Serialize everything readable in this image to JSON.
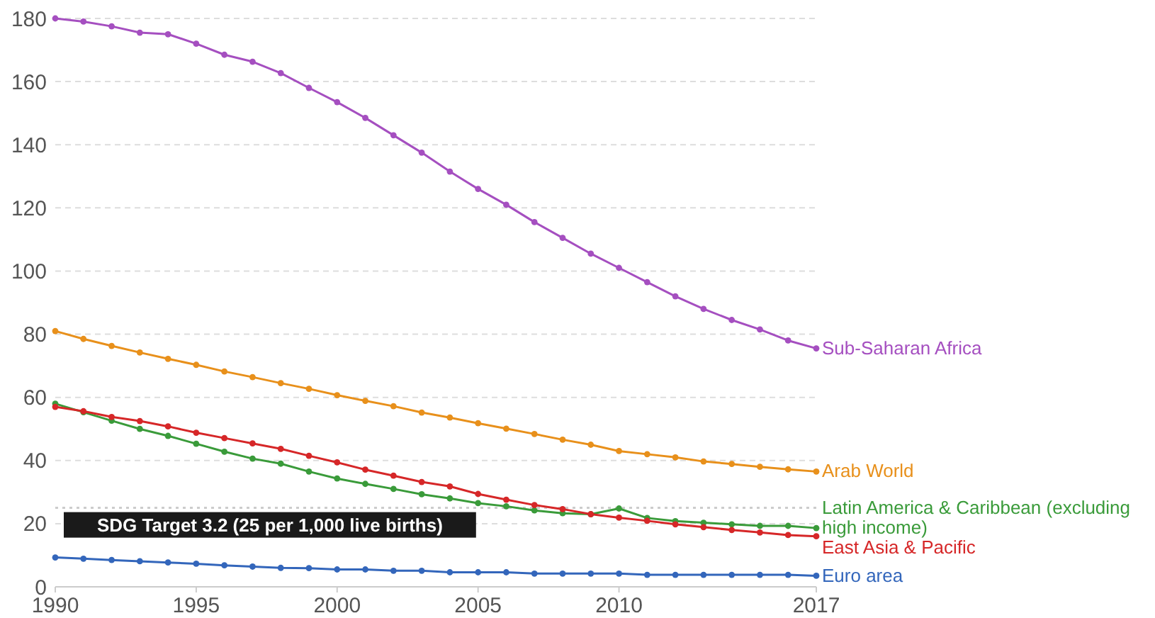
{
  "chart_data": {
    "type": "line",
    "x": [
      1990,
      1991,
      1992,
      1993,
      1994,
      1995,
      1996,
      1997,
      1998,
      1999,
      2000,
      2001,
      2002,
      2003,
      2004,
      2005,
      2006,
      2007,
      2008,
      2009,
      2010,
      2011,
      2012,
      2013,
      2014,
      2015,
      2016,
      2017
    ],
    "series": [
      {
        "name": "Sub-Saharan Africa",
        "color": "#a54fc0",
        "values": [
          180,
          179,
          177.5,
          175.5,
          175,
          172,
          168.5,
          166.3,
          162.7,
          158,
          153.5,
          148.5,
          143,
          137.5,
          131.5,
          126,
          121,
          115.5,
          110.5,
          105.5,
          101,
          96.5,
          92,
          88,
          84.5,
          81.5,
          78,
          75.5
        ]
      },
      {
        "name": "Arab World",
        "color": "#e8901b",
        "values": [
          81,
          78.5,
          76.3,
          74.2,
          72.2,
          70.3,
          68.2,
          66.4,
          64.5,
          62.7,
          60.7,
          58.9,
          57.2,
          55.2,
          53.6,
          51.8,
          50.1,
          48.4,
          46.6,
          45,
          43,
          42,
          41,
          39.7,
          38.9,
          38,
          37.2,
          36.5
        ]
      },
      {
        "name": "Latin America & Caribbean (excluding high income)",
        "color": "#3a9b3a",
        "values": [
          58,
          55.3,
          52.6,
          50,
          47.8,
          45.3,
          42.8,
          40.6,
          39,
          36.5,
          34.3,
          32.6,
          31,
          29.3,
          28,
          26.5,
          25.5,
          24.2,
          23.3,
          23,
          24.8,
          21.8,
          20.8,
          20.3,
          19.8,
          19.3,
          19.3,
          18.6
        ]
      },
      {
        "name": "East Asia & Pacific",
        "color": "#d62728",
        "values": [
          57,
          55.6,
          53.8,
          52.5,
          50.8,
          48.8,
          47.1,
          45.4,
          43.7,
          41.5,
          39.4,
          37.1,
          35.2,
          33.2,
          31.8,
          29.4,
          27.6,
          25.9,
          24.6,
          23,
          21.9,
          20.9,
          19.8,
          18.9,
          18,
          17.2,
          16.4,
          16
        ]
      },
      {
        "name": "Euro area",
        "color": "#3366bb",
        "values": [
          9.3,
          8.9,
          8.5,
          8.1,
          7.7,
          7.3,
          6.8,
          6.4,
          6,
          5.9,
          5.5,
          5.5,
          5.1,
          5.1,
          4.6,
          4.6,
          4.6,
          4.2,
          4.2,
          4.2,
          4.2,
          3.8,
          3.8,
          3.8,
          3.8,
          3.8,
          3.8,
          3.5
        ]
      }
    ],
    "xlim": [
      1990,
      2017
    ],
    "xticks": [
      1990,
      1995,
      2000,
      2005,
      2010,
      2017
    ],
    "ylim": [
      0,
      180
    ],
    "yticks": [
      0,
      20,
      40,
      60,
      80,
      100,
      120,
      140,
      160,
      180
    ],
    "grid": "y",
    "marker": "circle",
    "line_style": "solid",
    "ref_lines": [
      {
        "axis": "y",
        "value": 25,
        "label": "SDG Target 3.2 (25 per 1,000 live births)",
        "color": "#cccccc",
        "line_style": "dotted"
      }
    ]
  }
}
